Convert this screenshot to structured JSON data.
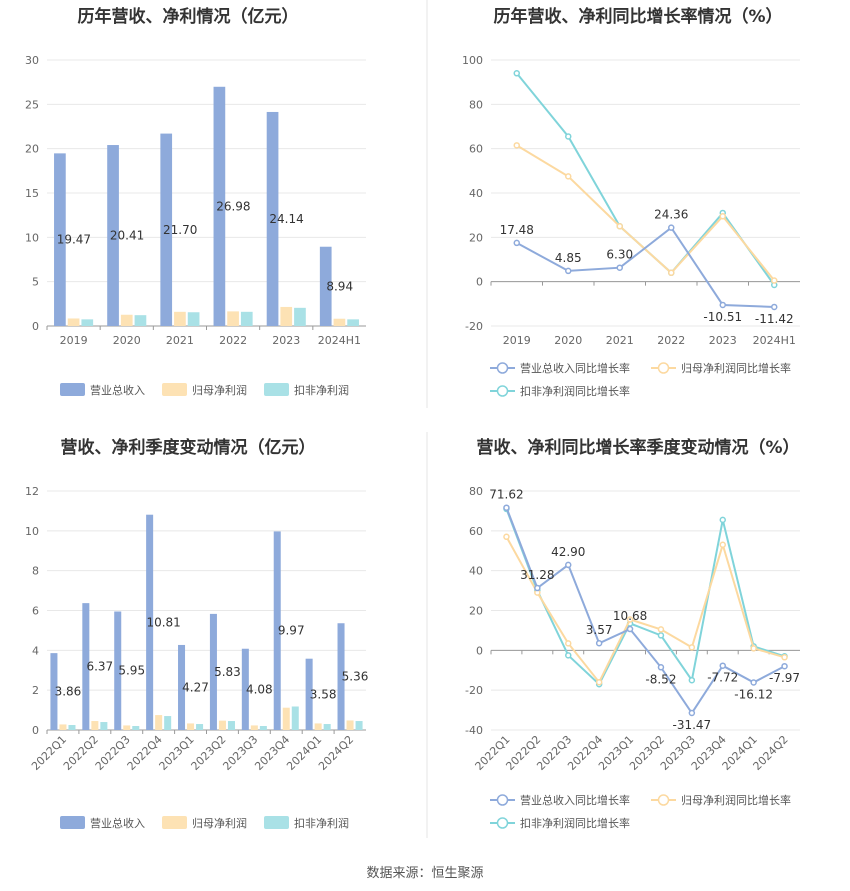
{
  "colors": {
    "revenue": "#8eaadb",
    "net_profit": "#fde2b4",
    "deducted_profit": "#a9e1e6",
    "revenue_line": "#8eaadb",
    "net_line": "#fcd9a0",
    "deducted_line": "#80d4da",
    "grid": "#e8e8e8",
    "axis": "#666666",
    "title": "#333333",
    "divider": "#e6e6e6"
  },
  "footer": "数据来源：恒生聚源",
  "chart_data": [
    {
      "type": "bar",
      "title": "历年营收、净利情况（亿元）",
      "categories": [
        "2019",
        "2020",
        "2021",
        "2022",
        "2023",
        "2024H1"
      ],
      "ylim": [
        0,
        30
      ],
      "yticks": [
        0,
        5,
        10,
        15,
        20,
        25,
        30
      ],
      "series": [
        {
          "name": "营业总收入",
          "values": [
            19.47,
            20.41,
            21.7,
            26.98,
            24.14,
            8.94
          ],
          "labels": [
            "19.47",
            "20.41",
            "21.70",
            "26.98",
            "24.14",
            "8.94"
          ]
        },
        {
          "name": "归母净利润",
          "values": [
            0.85,
            1.27,
            1.6,
            1.65,
            2.15,
            0.82
          ]
        },
        {
          "name": "扣非净利润",
          "values": [
            0.75,
            1.22,
            1.55,
            1.6,
            2.05,
            0.75
          ]
        }
      ]
    },
    {
      "type": "line",
      "title": "历年营收、净利同比增长率情况（%）",
      "categories": [
        "2019",
        "2020",
        "2021",
        "2022",
        "2023",
        "2024H1"
      ],
      "ylim": [
        -20,
        100
      ],
      "yticks": [
        -20,
        0,
        20,
        40,
        60,
        80,
        100
      ],
      "series": [
        {
          "name": "营业总收入同比增长率",
          "values": [
            17.48,
            4.85,
            6.3,
            24.36,
            -10.51,
            -11.42
          ],
          "labels": [
            "17.48",
            "4.85",
            "6.30",
            "24.36",
            "-10.51",
            "-11.42"
          ]
        },
        {
          "name": "归母净利润同比增长率",
          "values": [
            61.5,
            47.5,
            25.0,
            4.0,
            29.5,
            0.5
          ]
        },
        {
          "name": "扣非净利润同比增长率",
          "values": [
            94.0,
            65.5,
            25.0,
            4.0,
            31.0,
            -1.5
          ]
        }
      ]
    },
    {
      "type": "bar",
      "title": "营收、净利季度变动情况（亿元）",
      "categories": [
        "2022Q1",
        "2022Q2",
        "2022Q3",
        "2022Q4",
        "2023Q1",
        "2023Q2",
        "2023Q3",
        "2023Q4",
        "2024Q1",
        "2024Q2"
      ],
      "ylim": [
        0,
        12
      ],
      "yticks": [
        0,
        2,
        4,
        6,
        8,
        10,
        12
      ],
      "series": [
        {
          "name": "营业总收入",
          "values": [
            3.86,
            6.37,
            5.95,
            10.81,
            4.27,
            5.83,
            4.08,
            9.97,
            3.58,
            5.36
          ],
          "labels": [
            "3.86",
            "6.37",
            "5.95",
            "10.81",
            "4.27",
            "5.83",
            "4.08",
            "9.97",
            "3.58",
            "5.36"
          ]
        },
        {
          "name": "归母净利润",
          "values": [
            0.28,
            0.45,
            0.23,
            0.75,
            0.33,
            0.47,
            0.23,
            1.12,
            0.33,
            0.48
          ]
        },
        {
          "name": "扣非净利润",
          "values": [
            0.25,
            0.4,
            0.2,
            0.7,
            0.3,
            0.45,
            0.2,
            1.18,
            0.3,
            0.45
          ]
        }
      ]
    },
    {
      "type": "line",
      "title": "营收、净利同比增长率季度变动情况（%）",
      "categories": [
        "2022Q1",
        "2022Q2",
        "2022Q3",
        "2022Q4",
        "2023Q1",
        "2023Q2",
        "2023Q3",
        "2023Q4",
        "2024Q1",
        "2024Q2"
      ],
      "ylim": [
        -40,
        80
      ],
      "yticks": [
        -40,
        -20,
        0,
        20,
        40,
        60,
        80
      ],
      "series": [
        {
          "name": "营业总收入同比增长率",
          "values": [
            71.62,
            31.28,
            42.9,
            3.57,
            10.68,
            -8.52,
            -31.47,
            -7.72,
            -16.12,
            -7.97
          ],
          "labels": [
            "71.62",
            "31.28",
            "42.90",
            "3.57",
            "10.68",
            "-8.52",
            "-31.47",
            "-7.72",
            "-16.12",
            "-7.97"
          ]
        },
        {
          "name": "归母净利润同比增长率",
          "values": [
            57.0,
            29.0,
            3.5,
            -16.0,
            15.5,
            10.5,
            1.5,
            53.0,
            1.0,
            -3.5
          ]
        },
        {
          "name": "扣非净利润同比增长率",
          "values": [
            71.0,
            30.0,
            -2.5,
            -17.0,
            13.5,
            7.5,
            -15.0,
            65.5,
            2.0,
            -3.0
          ]
        }
      ]
    }
  ]
}
